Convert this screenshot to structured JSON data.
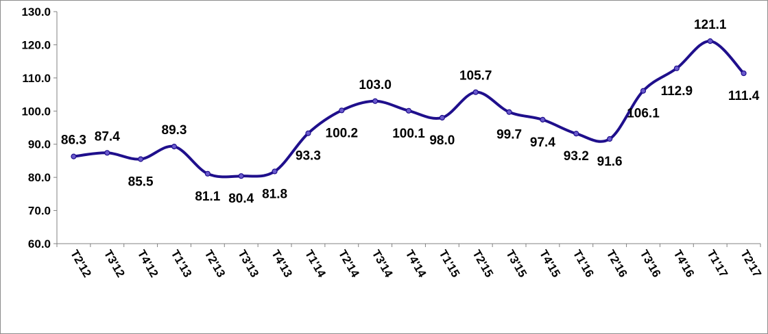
{
  "chart_data": {
    "type": "line",
    "title": "",
    "xlabel": "",
    "ylabel": "",
    "ylim": [
      60,
      130
    ],
    "yticks": [
      "60.0",
      "70.0",
      "80.0",
      "90.0",
      "100.0",
      "110.0",
      "120.0",
      "130.0"
    ],
    "grid": false,
    "legend": "none",
    "line_color": "#1f0f8c",
    "marker_color": "#6a5acd",
    "categories": [
      "T2'12",
      "T3'12",
      "T4'12",
      "T1'13",
      "T2'13",
      "T3'13",
      "T4'13",
      "T1'14",
      "T2'14",
      "T3'14",
      "T4'14",
      "T1'15",
      "T2'15",
      "T3'15",
      "T4'15",
      "T1'16",
      "T2'16",
      "T3'16",
      "T4'16",
      "T1'17",
      "T2'17"
    ],
    "series": [
      {
        "values": [
          86.3,
          87.4,
          85.5,
          89.3,
          81.1,
          80.4,
          81.8,
          93.3,
          100.2,
          103.0,
          100.1,
          98.0,
          105.7,
          99.7,
          97.4,
          93.2,
          91.6,
          106.1,
          112.9,
          121.1,
          111.4
        ],
        "labels": [
          "86.3",
          "87.4",
          "85.5",
          "89.3",
          "81.1",
          "80.4",
          "81.8",
          "93.3",
          "100.2",
          "103.0",
          "100.1",
          "98.0",
          "105.7",
          "99.7",
          "97.4",
          "93.2",
          "91.6",
          "106.1",
          "112.9",
          "121.1",
          "111.4"
        ]
      }
    ]
  }
}
